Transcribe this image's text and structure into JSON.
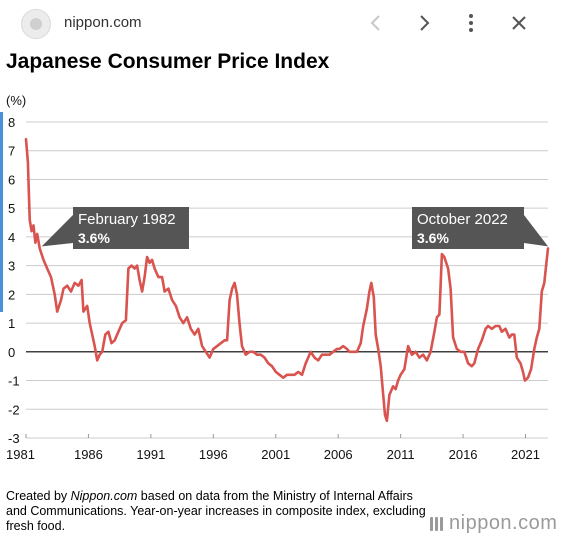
{
  "browser": {
    "site_name": "nippon.com",
    "icons": [
      "site-logo-icon",
      "chevron-left-icon",
      "chevron-right-icon",
      "more-vert-icon",
      "close-icon"
    ]
  },
  "colors": {
    "series": "#d9534f",
    "annotation_bg": "#555555",
    "grid": "#cccccc",
    "zero_line": "#000000"
  },
  "chart_data": {
    "type": "line",
    "title": "Japanese Consumer Price Index",
    "ylabel": "(%)",
    "xlabel": "",
    "ylim": [
      -3,
      8
    ],
    "xlim": [
      1981,
      2022.8
    ],
    "yticks": [
      -3,
      -2,
      -1,
      0,
      1,
      2,
      3,
      4,
      5,
      6,
      7,
      8
    ],
    "xticks": [
      1981,
      1986,
      1991,
      1996,
      2001,
      2006,
      2011,
      2016,
      2021
    ],
    "grid": true,
    "annotations": [
      {
        "label": "February 1982",
        "value": "3.6%",
        "x": 1982.1,
        "y": 3.6
      },
      {
        "label": "October 2022",
        "value": "3.6%",
        "x": 2022.8,
        "y": 3.6
      }
    ],
    "series": [
      {
        "name": "",
        "points": [
          [
            1981.0,
            7.4
          ],
          [
            1981.15,
            6.6
          ],
          [
            1981.3,
            4.6
          ],
          [
            1981.45,
            4.2
          ],
          [
            1981.6,
            4.4
          ],
          [
            1981.75,
            3.8
          ],
          [
            1981.9,
            4.1
          ],
          [
            1982.1,
            3.6
          ],
          [
            1982.4,
            3.2
          ],
          [
            1982.7,
            2.9
          ],
          [
            1983.0,
            2.6
          ],
          [
            1983.3,
            2.0
          ],
          [
            1983.5,
            1.4
          ],
          [
            1983.8,
            1.8
          ],
          [
            1984.0,
            2.2
          ],
          [
            1984.3,
            2.3
          ],
          [
            1984.6,
            2.1
          ],
          [
            1984.9,
            2.4
          ],
          [
            1985.2,
            2.3
          ],
          [
            1985.45,
            2.5
          ],
          [
            1985.6,
            1.4
          ],
          [
            1985.9,
            1.6
          ],
          [
            1986.1,
            1.0
          ],
          [
            1986.3,
            0.6
          ],
          [
            1986.5,
            0.2
          ],
          [
            1986.7,
            -0.3
          ],
          [
            1986.9,
            -0.1
          ],
          [
            1987.1,
            0.0
          ],
          [
            1987.35,
            0.6
          ],
          [
            1987.6,
            0.7
          ],
          [
            1987.85,
            0.3
          ],
          [
            1988.1,
            0.4
          ],
          [
            1988.4,
            0.7
          ],
          [
            1988.7,
            1.0
          ],
          [
            1989.0,
            1.1
          ],
          [
            1989.2,
            2.9
          ],
          [
            1989.45,
            3.0
          ],
          [
            1989.7,
            2.9
          ],
          [
            1989.9,
            3.0
          ],
          [
            1990.1,
            2.5
          ],
          [
            1990.3,
            2.1
          ],
          [
            1990.5,
            2.6
          ],
          [
            1990.7,
            3.3
          ],
          [
            1990.9,
            3.1
          ],
          [
            1991.1,
            3.2
          ],
          [
            1991.3,
            2.9
          ],
          [
            1991.6,
            2.6
          ],
          [
            1991.9,
            2.6
          ],
          [
            1992.1,
            2.1
          ],
          [
            1992.4,
            2.2
          ],
          [
            1992.7,
            1.8
          ],
          [
            1993.0,
            1.6
          ],
          [
            1993.3,
            1.2
          ],
          [
            1993.6,
            1.0
          ],
          [
            1993.9,
            1.2
          ],
          [
            1994.2,
            0.8
          ],
          [
            1994.5,
            0.6
          ],
          [
            1994.8,
            0.8
          ],
          [
            1995.1,
            0.2
          ],
          [
            1995.4,
            0.0
          ],
          [
            1995.7,
            -0.2
          ],
          [
            1996.0,
            0.1
          ],
          [
            1996.3,
            0.2
          ],
          [
            1996.6,
            0.3
          ],
          [
            1996.9,
            0.4
          ],
          [
            1997.1,
            0.4
          ],
          [
            1997.3,
            1.8
          ],
          [
            1997.5,
            2.2
          ],
          [
            1997.7,
            2.4
          ],
          [
            1997.9,
            2.0
          ],
          [
            1998.1,
            1.0
          ],
          [
            1998.3,
            0.2
          ],
          [
            1998.6,
            -0.1
          ],
          [
            1998.9,
            0.0
          ],
          [
            1999.2,
            0.0
          ],
          [
            1999.5,
            -0.1
          ],
          [
            1999.8,
            -0.1
          ],
          [
            2000.1,
            -0.2
          ],
          [
            2000.4,
            -0.4
          ],
          [
            2000.7,
            -0.5
          ],
          [
            2001.0,
            -0.7
          ],
          [
            2001.3,
            -0.8
          ],
          [
            2001.6,
            -0.9
          ],
          [
            2001.9,
            -0.8
          ],
          [
            2002.2,
            -0.8
          ],
          [
            2002.5,
            -0.8
          ],
          [
            2002.8,
            -0.7
          ],
          [
            2003.1,
            -0.8
          ],
          [
            2003.4,
            -0.4
          ],
          [
            2003.6,
            -0.2
          ],
          [
            2003.8,
            0.0
          ],
          [
            2004.1,
            -0.2
          ],
          [
            2004.4,
            -0.3
          ],
          [
            2004.7,
            -0.1
          ],
          [
            2005.0,
            -0.1
          ],
          [
            2005.3,
            -0.1
          ],
          [
            2005.6,
            0.0
          ],
          [
            2005.9,
            0.1
          ],
          [
            2006.1,
            0.1
          ],
          [
            2006.4,
            0.2
          ],
          [
            2006.7,
            0.1
          ],
          [
            2006.9,
            0.0
          ],
          [
            2007.2,
            0.0
          ],
          [
            2007.5,
            0.0
          ],
          [
            2007.8,
            0.3
          ],
          [
            2008.0,
            0.9
          ],
          [
            2008.3,
            1.5
          ],
          [
            2008.5,
            2.1
          ],
          [
            2008.65,
            2.4
          ],
          [
            2008.85,
            1.9
          ],
          [
            2009.0,
            0.6
          ],
          [
            2009.2,
            0.1
          ],
          [
            2009.4,
            -0.5
          ],
          [
            2009.6,
            -1.5
          ],
          [
            2009.75,
            -2.2
          ],
          [
            2009.9,
            -2.4
          ],
          [
            2010.1,
            -1.5
          ],
          [
            2010.4,
            -1.2
          ],
          [
            2010.6,
            -1.3
          ],
          [
            2010.8,
            -1.0
          ],
          [
            2011.0,
            -0.8
          ],
          [
            2011.3,
            -0.6
          ],
          [
            2011.6,
            0.2
          ],
          [
            2011.9,
            -0.1
          ],
          [
            2012.2,
            0.0
          ],
          [
            2012.5,
            -0.2
          ],
          [
            2012.8,
            -0.1
          ],
          [
            2013.1,
            -0.3
          ],
          [
            2013.4,
            0.0
          ],
          [
            2013.7,
            0.7
          ],
          [
            2013.9,
            1.2
          ],
          [
            2014.1,
            1.3
          ],
          [
            2014.3,
            3.4
          ],
          [
            2014.5,
            3.3
          ],
          [
            2014.8,
            2.9
          ],
          [
            2015.0,
            2.2
          ],
          [
            2015.2,
            0.5
          ],
          [
            2015.5,
            0.1
          ],
          [
            2015.8,
            0.0
          ],
          [
            2016.1,
            0.0
          ],
          [
            2016.4,
            -0.4
          ],
          [
            2016.7,
            -0.5
          ],
          [
            2016.9,
            -0.4
          ],
          [
            2017.2,
            0.1
          ],
          [
            2017.5,
            0.4
          ],
          [
            2017.8,
            0.8
          ],
          [
            2018.0,
            0.9
          ],
          [
            2018.3,
            0.8
          ],
          [
            2018.6,
            0.9
          ],
          [
            2018.9,
            0.9
          ],
          [
            2019.1,
            0.7
          ],
          [
            2019.4,
            0.8
          ],
          [
            2019.7,
            0.5
          ],
          [
            2019.9,
            0.6
          ],
          [
            2020.1,
            0.6
          ],
          [
            2020.3,
            -0.2
          ],
          [
            2020.6,
            -0.4
          ],
          [
            2020.8,
            -0.7
          ],
          [
            2020.95,
            -1.0
          ],
          [
            2021.2,
            -0.9
          ],
          [
            2021.45,
            -0.6
          ],
          [
            2021.7,
            0.1
          ],
          [
            2021.9,
            0.5
          ],
          [
            2022.1,
            0.8
          ],
          [
            2022.3,
            2.1
          ],
          [
            2022.5,
            2.4
          ],
          [
            2022.65,
            3.0
          ],
          [
            2022.8,
            3.6
          ]
        ]
      }
    ]
  },
  "footnote": {
    "prefix": "Created by ",
    "source_name": "Nippon.com",
    "rest": " based on data from the Ministry of Internal Affairs and Communications. Year-on-year increases in composite index, excluding fresh food."
  },
  "brand": {
    "text": "nippon.com"
  }
}
